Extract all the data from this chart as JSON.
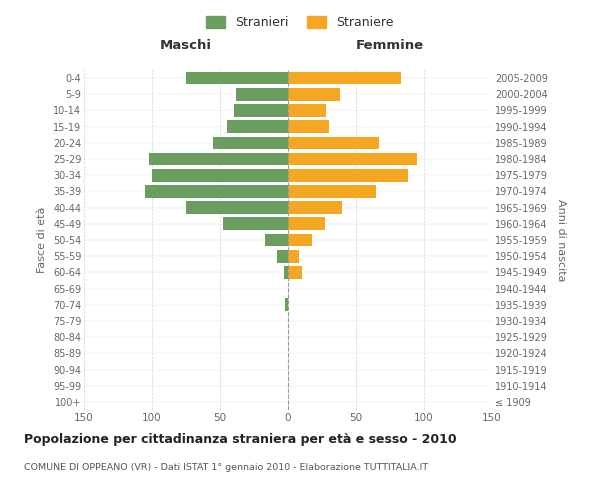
{
  "age_groups": [
    "100+",
    "95-99",
    "90-94",
    "85-89",
    "80-84",
    "75-79",
    "70-74",
    "65-69",
    "60-64",
    "55-59",
    "50-54",
    "45-49",
    "40-44",
    "35-39",
    "30-34",
    "25-29",
    "20-24",
    "15-19",
    "10-14",
    "5-9",
    "0-4"
  ],
  "birth_years": [
    "≤ 1909",
    "1910-1914",
    "1915-1919",
    "1920-1924",
    "1925-1929",
    "1930-1934",
    "1935-1939",
    "1940-1944",
    "1945-1949",
    "1950-1954",
    "1955-1959",
    "1960-1964",
    "1965-1969",
    "1970-1974",
    "1975-1979",
    "1980-1984",
    "1985-1989",
    "1990-1994",
    "1995-1999",
    "2000-2004",
    "2005-2009"
  ],
  "males": [
    0,
    0,
    0,
    0,
    0,
    0,
    2,
    0,
    3,
    8,
    17,
    48,
    75,
    105,
    100,
    102,
    55,
    45,
    40,
    38,
    75
  ],
  "females": [
    0,
    0,
    0,
    0,
    0,
    0,
    0,
    0,
    10,
    8,
    18,
    27,
    40,
    65,
    88,
    95,
    67,
    30,
    28,
    38,
    83
  ],
  "male_color": "#6a9e5e",
  "female_color": "#f5a623",
  "background_color": "#ffffff",
  "grid_color": "#cccccc",
  "title": "Popolazione per cittadinanza straniera per età e sesso - 2010",
  "subtitle": "COMUNE DI OPPEANO (VR) - Dati ISTAT 1° gennaio 2010 - Elaborazione TUTTITALIA.IT",
  "ylabel_left": "Fasce di età",
  "ylabel_right": "Anni di nascita",
  "header_left": "Maschi",
  "header_right": "Femmine",
  "legend_male": "Stranieri",
  "legend_female": "Straniere",
  "xlim": 150
}
